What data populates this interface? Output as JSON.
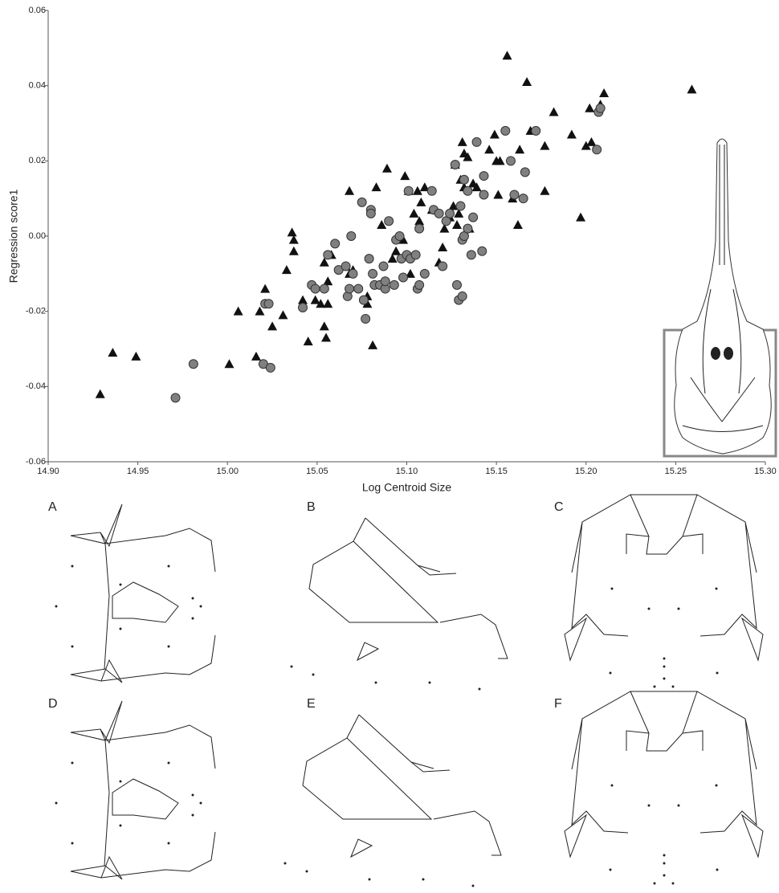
{
  "chart_data": {
    "type": "scatter",
    "x_label": "Log Centroid Size",
    "y_label": "Regression score1",
    "xlim": [
      14.9,
      15.3
    ],
    "ylim": [
      -0.06,
      0.06
    ],
    "xticks": [
      {
        "value": 14.9,
        "label": "14.90"
      },
      14.95,
      {
        "value": 15.0,
        "label": "15.00"
      },
      15.05,
      {
        "value": 15.1,
        "label": "15.10"
      },
      15.15,
      {
        "value": 15.2,
        "label": "15.20"
      },
      15.25,
      {
        "value": 15.3,
        "label": "15.30"
      }
    ],
    "yticks": [
      -0.06,
      -0.04,
      -0.02,
      {
        "value": 0,
        "label": "0.00"
      },
      0.02,
      0.04,
      0.06
    ],
    "series": [
      {
        "marker": "triangle",
        "color": "#111111",
        "x": [
          14.929,
          14.936,
          14.949,
          15.001,
          15.006,
          15.016,
          15.018,
          15.021,
          15.025,
          15.031,
          15.033,
          15.036,
          15.037,
          15.037,
          15.042,
          15.045,
          15.049,
          15.052,
          15.054,
          15.054,
          15.055,
          15.056,
          15.056,
          15.058,
          15.066,
          15.068,
          15.07,
          15.068,
          15.078,
          15.078,
          15.081,
          15.083,
          15.086,
          15.089,
          15.092,
          15.094,
          15.098,
          15.099,
          15.101,
          15.102,
          15.104,
          15.106,
          15.107,
          15.108,
          15.11,
          15.114,
          15.118,
          15.12,
          15.121,
          15.124,
          15.126,
          15.127,
          15.128,
          15.129,
          15.13,
          15.131,
          15.132,
          15.132,
          15.134,
          15.135,
          15.137,
          15.139,
          15.146,
          15.149,
          15.15,
          15.151,
          15.152,
          15.156,
          15.159,
          15.162,
          15.163,
          15.167,
          15.169,
          15.177,
          15.177,
          15.182,
          15.192,
          15.197,
          15.2,
          15.202,
          15.203,
          15.208,
          15.21,
          15.259
        ],
        "values": [
          -0.042,
          -0.031,
          -0.032,
          -0.034,
          -0.02,
          -0.032,
          -0.02,
          -0.014,
          -0.024,
          -0.021,
          -0.009,
          0.001,
          -0.001,
          -0.004,
          -0.017,
          -0.028,
          -0.017,
          -0.018,
          -0.007,
          -0.024,
          -0.027,
          -0.018,
          -0.012,
          -0.005,
          -0.008,
          -0.01,
          -0.009,
          0.012,
          -0.016,
          -0.018,
          -0.029,
          0.013,
          0.003,
          0.018,
          -0.006,
          -0.004,
          -0.001,
          0.016,
          0.012,
          -0.01,
          0.006,
          0.012,
          0.004,
          0.009,
          0.013,
          0.007,
          -0.007,
          -0.003,
          0.002,
          0.005,
          0.008,
          0.019,
          0.003,
          0.006,
          0.015,
          0.025,
          0.013,
          0.022,
          0.021,
          0.002,
          0.014,
          0.013,
          0.023,
          0.027,
          0.02,
          0.011,
          0.02,
          0.048,
          0.01,
          0.003,
          0.023,
          0.041,
          0.028,
          0.024,
          0.012,
          0.033,
          0.027,
          0.005,
          0.024,
          0.034,
          0.025,
          0.035,
          0.038,
          0.039
        ]
      },
      {
        "marker": "circle",
        "color": "#808080",
        "x": [
          14.971,
          14.981,
          15.02,
          15.021,
          15.023,
          15.024,
          15.042,
          15.047,
          15.049,
          15.054,
          15.056,
          15.06,
          15.062,
          15.066,
          15.067,
          15.068,
          15.069,
          15.07,
          15.073,
          15.075,
          15.076,
          15.077,
          15.079,
          15.08,
          15.08,
          15.081,
          15.082,
          15.085,
          15.087,
          15.088,
          15.088,
          15.09,
          15.093,
          15.094,
          15.096,
          15.097,
          15.098,
          15.1,
          15.101,
          15.102,
          15.105,
          15.106,
          15.107,
          15.107,
          15.11,
          15.114,
          15.115,
          15.118,
          15.12,
          15.122,
          15.124,
          15.127,
          15.128,
          15.129,
          15.13,
          15.131,
          15.131,
          15.132,
          15.132,
          15.134,
          15.134,
          15.136,
          15.137,
          15.139,
          15.142,
          15.143,
          15.143,
          15.155,
          15.158,
          15.16,
          15.165,
          15.166,
          15.172,
          15.206,
          15.207,
          15.208
        ],
        "values": [
          -0.043,
          -0.034,
          -0.034,
          -0.018,
          -0.018,
          -0.035,
          -0.019,
          -0.013,
          -0.014,
          -0.014,
          -0.005,
          -0.002,
          -0.009,
          -0.008,
          -0.016,
          -0.014,
          0.0,
          -0.01,
          -0.014,
          0.009,
          -0.017,
          -0.022,
          -0.006,
          0.007,
          0.006,
          -0.01,
          -0.013,
          -0.013,
          -0.008,
          -0.014,
          -0.012,
          0.004,
          -0.013,
          -0.001,
          0.0,
          -0.006,
          -0.011,
          -0.005,
          0.012,
          -0.006,
          -0.005,
          -0.014,
          0.002,
          -0.013,
          -0.01,
          0.012,
          0.007,
          0.006,
          -0.008,
          0.004,
          0.006,
          0.019,
          -0.013,
          -0.017,
          0.008,
          -0.016,
          -0.001,
          0.0,
          0.015,
          0.012,
          0.002,
          -0.005,
          0.005,
          0.025,
          -0.004,
          0.011,
          0.016,
          0.028,
          0.02,
          0.011,
          0.01,
          0.017,
          0.028,
          0.023,
          0.033,
          0.034
        ]
      }
    ]
  },
  "panel_labels": [
    "A",
    "B",
    "C",
    "D",
    "E",
    "F"
  ]
}
